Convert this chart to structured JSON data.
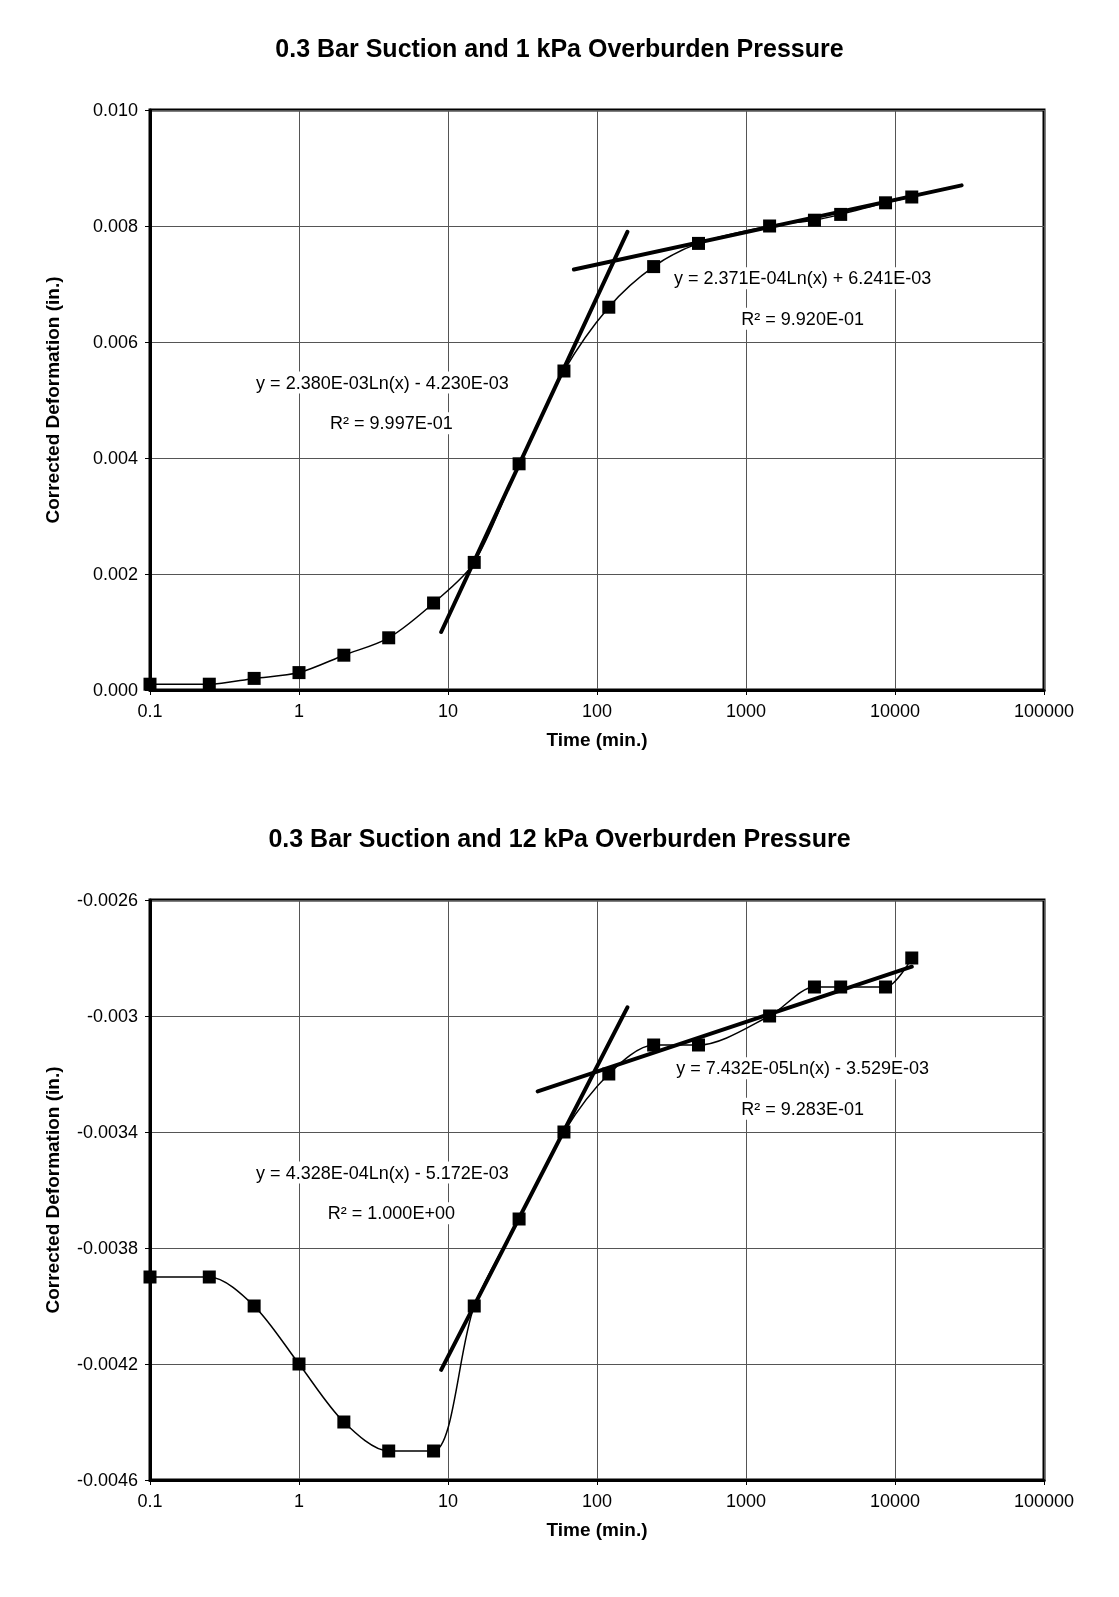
{
  "chart_data": [
    {
      "type": "line",
      "title": "0.3 Bar Suction and 1 kPa Overburden Pressure",
      "xlabel": "Time (min.)",
      "ylabel": "Corrected Deformation (in.)",
      "log": "x",
      "grid": true,
      "marker": "square",
      "line_style": "solid",
      "xlim": [
        0.1,
        100000
      ],
      "xticks": [
        0.1,
        1,
        10,
        100,
        1000,
        10000,
        100000
      ],
      "ylim": [
        0,
        0.01
      ],
      "yticks": [
        {
          "value": 0,
          "label": "0.000"
        },
        {
          "value": 0.002,
          "label": "0.002"
        },
        {
          "value": 0.004,
          "label": "0.004"
        },
        {
          "value": 0.006,
          "label": "0.006"
        },
        {
          "value": 0.008,
          "label": "0.008"
        },
        {
          "value": 0.01,
          "label": "0.010"
        }
      ],
      "series": [
        {
          "color": "#000000",
          "x": [
            0.1,
            0.25,
            0.5,
            1,
            2,
            4,
            8,
            15,
            30,
            60,
            120,
            240,
            480,
            1440,
            2880,
            4320,
            8640,
            12960
          ],
          "values": [
            0.0001,
            0.0001,
            0.0002,
            0.0003,
            0.0006,
            0.0009,
            0.0015,
            0.0022,
            0.0039,
            0.0055,
            0.0066,
            0.0073,
            0.0077,
            0.008,
            0.0081,
            0.0082,
            0.0084,
            0.0085
          ]
        },
        {
          "type": "line",
          "marker": "none",
          "color": "#000000",
          "x": [
            9,
            160
          ],
          "values": [
            0.001,
            0.0079
          ]
        },
        {
          "type": "line",
          "marker": "none",
          "color": "#000000",
          "x": [
            70,
            28000
          ],
          "values": [
            0.00725,
            0.0087
          ]
        }
      ],
      "annotations": [
        "y = 2.380E-03Ln(x) - 4.230E-03",
        "R² = 9.997E-01",
        "y = 2.371E-04Ln(x) + 6.241E-03",
        "R² = 9.920E-01"
      ]
    },
    {
      "type": "line",
      "title": "0.3 Bar Suction and 12 kPa Overburden Pressure",
      "xlabel": "Time (min.)",
      "ylabel": "Corrected Deformation (in.)",
      "log": "x",
      "grid": true,
      "marker": "square",
      "line_style": "solid",
      "xlim": [
        0.1,
        100000
      ],
      "xticks": [
        0.1,
        1,
        10,
        100,
        1000,
        10000,
        100000
      ],
      "ylim": [
        -0.0046,
        -0.0026
      ],
      "yticks": [
        -0.0046,
        -0.0042,
        -0.0038,
        -0.0034,
        -0.003,
        -0.0026
      ],
      "series": [
        {
          "color": "#000000",
          "x": [
            0.1,
            0.25,
            0.5,
            1,
            2,
            4,
            8,
            15,
            30,
            60,
            120,
            240,
            480,
            1440,
            2880,
            4320,
            8640,
            12960
          ],
          "values": [
            -0.0039,
            -0.0039,
            -0.004,
            -0.0042,
            -0.0044,
            -0.0045,
            -0.0045,
            -0.004,
            -0.0037,
            -0.0034,
            -0.0032,
            -0.0031,
            -0.0031,
            -0.003,
            -0.0029,
            -0.0029,
            -0.0029,
            -0.0028
          ]
        },
        {
          "type": "line",
          "marker": "none",
          "color": "#000000",
          "x": [
            9,
            160
          ],
          "values": [
            -0.00422,
            -0.00297
          ]
        },
        {
          "type": "line",
          "marker": "none",
          "color": "#000000",
          "x": [
            40,
            12960
          ],
          "values": [
            -0.00326,
            -0.00283
          ]
        }
      ],
      "annotations": [
        "y = 4.328E-04Ln(x) - 5.172E-03",
        "R² = 1.000E+00",
        "y = 7.432E-05Ln(x) - 3.529E-03",
        "R² = 9.283E-01"
      ]
    }
  ]
}
